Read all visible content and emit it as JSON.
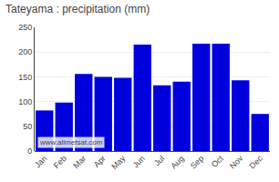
{
  "chart_data": {
    "type": "bar",
    "title": "Tateyama : precipitation (mm)",
    "categories": [
      "Jan",
      "Feb",
      "Mar",
      "Apr",
      "May",
      "Jun",
      "Jul",
      "Aug",
      "Sep",
      "Oct",
      "Nov",
      "Dec"
    ],
    "values": [
      82,
      98,
      156,
      150,
      148,
      215,
      133,
      140,
      217,
      217,
      143,
      75
    ],
    "color": "#0000dd",
    "ylim": [
      0,
      250
    ],
    "yticks": [
      0,
      50,
      100,
      150,
      200,
      250
    ],
    "grid": true,
    "annotations": [
      "www.allmetsat.com"
    ]
  }
}
